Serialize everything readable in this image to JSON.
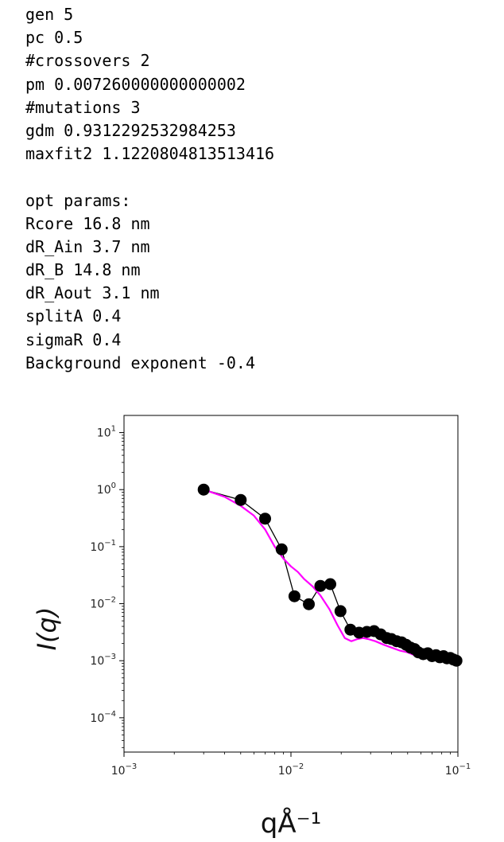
{
  "output": {
    "lines": [
      "gen 5",
      "pc 0.5",
      "#crossovers 2",
      "pm 0.007260000000000002",
      "#mutations 3",
      "gdm 0.9312292532984253",
      "maxfit2 1.1220804813513416",
      "",
      "opt params:",
      "Rcore 16.8 nm",
      "dR_Ain 3.7 nm",
      "dR_B 14.8 nm",
      "dR_Aout 3.1 nm",
      "splitA 0.4",
      "sigmaR 0.4",
      "Background exponent -0.4"
    ]
  },
  "chart_data": {
    "type": "scatter",
    "xlabel": "qÅ⁻¹",
    "ylabel": "I(q)",
    "xscale": "log",
    "yscale": "log",
    "xlim": [
      0.001,
      0.1
    ],
    "ylim": [
      2.5e-05,
      20
    ],
    "xticks": [
      {
        "value": 0.001,
        "base": "10",
        "exp": "−3"
      },
      {
        "value": 0.01,
        "base": "10",
        "exp": "−2"
      },
      {
        "value": 0.1,
        "base": "10",
        "exp": "−1"
      }
    ],
    "yticks": [
      {
        "value": 10,
        "base": "10",
        "exp": "1"
      },
      {
        "value": 1,
        "base": "10",
        "exp": "0"
      },
      {
        "value": 0.1,
        "base": "10",
        "exp": "−1"
      },
      {
        "value": 0.01,
        "base": "10",
        "exp": "−2"
      },
      {
        "value": 0.001,
        "base": "10",
        "exp": "−3"
      },
      {
        "value": 0.0001,
        "base": "10",
        "exp": "−4"
      }
    ],
    "grid": false,
    "series": [
      {
        "kind": "scatter-line",
        "color": "#000000",
        "x": [
          0.003,
          0.005,
          0.007,
          0.0088,
          0.0105,
          0.0128,
          0.015,
          0.0172,
          0.0198,
          0.0227,
          0.0256,
          0.0285,
          0.0315,
          0.0345,
          0.0375,
          0.04,
          0.043,
          0.046,
          0.049,
          0.052,
          0.055,
          0.058,
          0.062,
          0.066,
          0.07,
          0.074,
          0.078,
          0.082,
          0.086,
          0.09,
          0.094,
          0.098
        ],
        "y": [
          1.0,
          0.66,
          0.31,
          0.09,
          0.0135,
          0.0098,
          0.0205,
          0.022,
          0.0074,
          0.0035,
          0.0031,
          0.0032,
          0.0033,
          0.0029,
          0.0025,
          0.0024,
          0.0022,
          0.0021,
          0.0019,
          0.0017,
          0.0016,
          0.0014,
          0.0013,
          0.00135,
          0.0012,
          0.00125,
          0.00115,
          0.0012,
          0.0011,
          0.00112,
          0.00105,
          0.001
        ]
      },
      {
        "kind": "line",
        "color": "#ff00ff",
        "x": [
          0.003,
          0.004,
          0.005,
          0.006,
          0.007,
          0.008,
          0.009,
          0.01,
          0.011,
          0.012,
          0.0135,
          0.015,
          0.017,
          0.019,
          0.021,
          0.023,
          0.025,
          0.027,
          0.029,
          0.032,
          0.036,
          0.04,
          0.045,
          0.05,
          0.055,
          0.06
        ],
        "y": [
          1.0,
          0.75,
          0.52,
          0.35,
          0.2,
          0.1,
          0.062,
          0.045,
          0.036,
          0.027,
          0.02,
          0.014,
          0.008,
          0.0042,
          0.0025,
          0.0022,
          0.0024,
          0.0025,
          0.0024,
          0.0022,
          0.0019,
          0.0017,
          0.0015,
          0.0014,
          0.00125,
          0.0012
        ]
      }
    ]
  }
}
